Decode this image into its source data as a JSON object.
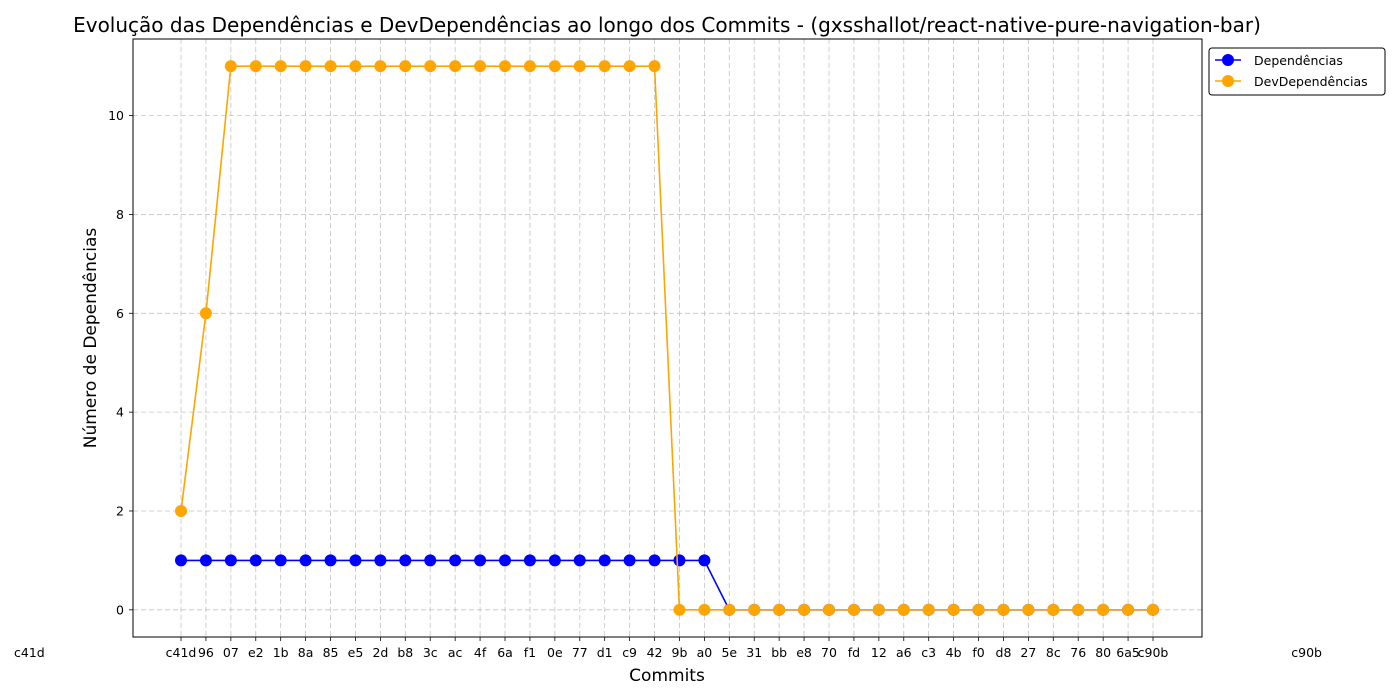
{
  "chart_data": {
    "type": "line",
    "title": "Evolução das Dependências e DevDependências ao longo dos Commits - (gxsshallot/react-native-pure-navigation-bar)",
    "xlabel": "Commits",
    "ylabel": "Número de Dependências",
    "x": [
      "c41d",
      "",
      "",
      "",
      "",
      "",
      "",
      "",
      "",
      "",
      "",
      "",
      "",
      "",
      "",
      "",
      "",
      "",
      "",
      "",
      "",
      "",
      "",
      "",
      "",
      "",
      "",
      "",
      "",
      "",
      "",
      "",
      "",
      "",
      "",
      "",
      "",
      "",
      "",
      "c90b"
    ],
    "x_label_fragments": [
      "c41d",
      "96",
      "07",
      "e2",
      "1b",
      "8a",
      "85",
      "e5",
      "2d",
      "b8",
      "3c",
      "ac",
      "4f",
      "6a",
      "f1",
      "0e",
      "77",
      "d1",
      "c9",
      "42",
      "9b",
      "a0",
      "5e",
      "31",
      "bb",
      "e8",
      "70",
      "fd",
      "12",
      "a6",
      "c3",
      "4b",
      "f0",
      "d8",
      "27",
      "8c",
      "76",
      "80",
      "6a5",
      "c90b"
    ],
    "series": [
      {
        "name": "Dependências",
        "color": "#0000ff",
        "values": [
          1,
          1,
          1,
          1,
          1,
          1,
          1,
          1,
          1,
          1,
          1,
          1,
          1,
          1,
          1,
          1,
          1,
          1,
          1,
          1,
          1,
          1,
          0,
          0,
          0,
          0,
          0,
          0,
          0,
          0,
          0,
          0,
          0,
          0,
          0,
          0,
          0,
          0,
          0,
          0
        ]
      },
      {
        "name": "DevDependências",
        "color": "#ffa500",
        "values": [
          2,
          6,
          11,
          11,
          11,
          11,
          11,
          11,
          11,
          11,
          11,
          11,
          11,
          11,
          11,
          11,
          11,
          11,
          11,
          11,
          0,
          0,
          0,
          0,
          0,
          0,
          0,
          0,
          0,
          0,
          0,
          0,
          0,
          0,
          0,
          0,
          0,
          0,
          0,
          0
        ]
      }
    ],
    "ylim": [
      -0.55,
      11.55
    ],
    "yticks": [
      0,
      2,
      4,
      6,
      8,
      10
    ],
    "grid": true,
    "legend_position": "outside-top-right",
    "marker": "circle"
  }
}
